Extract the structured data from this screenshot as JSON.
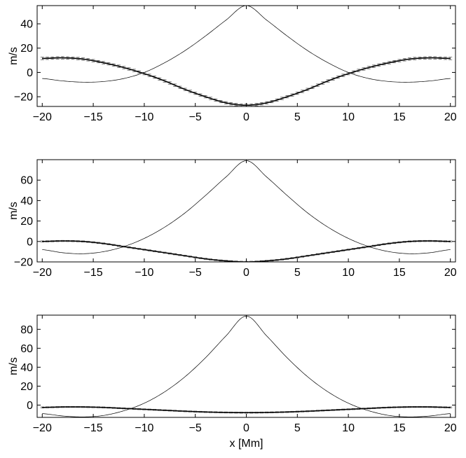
{
  "chart_data": [
    {
      "type": "line",
      "ylabel": "m/s",
      "xlabel": "",
      "xlim": [
        -20.5,
        20.5
      ],
      "ylim": [
        -28,
        55
      ],
      "xticks": [
        -20,
        -15,
        -10,
        -5,
        0,
        5,
        10,
        15,
        20
      ],
      "xtick_labels": [
        "−20",
        "−15",
        "−10",
        "−5",
        "0",
        "5",
        "10",
        "15",
        "20"
      ],
      "yticks": [
        -20,
        0,
        20,
        40
      ],
      "ytick_labels": [
        "−20",
        "0",
        "20",
        "40"
      ],
      "grid": false,
      "series": [
        {
          "style": "thin-line",
          "x": [
            -20,
            -18,
            -16,
            -14,
            -12,
            -10,
            -8,
            -6,
            -4,
            -2,
            0,
            2,
            4,
            6,
            8,
            10,
            12,
            14,
            16,
            18,
            20
          ],
          "y": [
            -5,
            -7,
            -8,
            -7.5,
            -5,
            0,
            8,
            18,
            30,
            43,
            55,
            43,
            30,
            18,
            8,
            0,
            -5,
            -7.5,
            -8,
            -7,
            -5
          ]
        },
        {
          "style": "line-with-errorbars",
          "x": [
            -20,
            -18,
            -16,
            -14,
            -12,
            -10,
            -8,
            -6,
            -4,
            -2,
            0,
            2,
            4,
            6,
            8,
            10,
            12,
            14,
            16,
            18,
            20
          ],
          "y": [
            11.5,
            12,
            11,
            8,
            4,
            -1,
            -7,
            -14,
            -20,
            -25,
            -27,
            -25,
            -20,
            -14,
            -7,
            -1,
            4,
            8,
            11,
            12,
            11.5
          ]
        }
      ]
    },
    {
      "type": "line",
      "ylabel": "m/s",
      "xlabel": "",
      "xlim": [
        -20.5,
        20.5
      ],
      "ylim": [
        -20,
        80
      ],
      "xticks": [
        -20,
        -15,
        -10,
        -5,
        0,
        5,
        10,
        15,
        20
      ],
      "xtick_labels": [
        "−20",
        "−15",
        "−10",
        "−5",
        "0",
        "5",
        "10",
        "15",
        "20"
      ],
      "yticks": [
        -20,
        0,
        20,
        40,
        60
      ],
      "ytick_labels": [
        "−20",
        "0",
        "20",
        "40",
        "60"
      ],
      "grid": false,
      "series": [
        {
          "style": "thin-line",
          "x": [
            -20,
            -18,
            -16,
            -14,
            -12,
            -10,
            -8,
            -6,
            -4,
            -2,
            0,
            2,
            4,
            6,
            8,
            10,
            12,
            14,
            16,
            18,
            20
          ],
          "y": [
            -8,
            -11,
            -12,
            -10,
            -5,
            3,
            14,
            28,
            45,
            63,
            79,
            63,
            45,
            28,
            14,
            3,
            -5,
            -10,
            -12,
            -11,
            -8
          ]
        },
        {
          "style": "line-with-errorbars",
          "x": [
            -20,
            -18,
            -16,
            -14,
            -12,
            -10,
            -8,
            -6,
            -4,
            -2,
            0,
            2,
            4,
            6,
            8,
            10,
            12,
            14,
            16,
            18,
            20
          ],
          "y": [
            0,
            0.5,
            0,
            -2,
            -5,
            -8,
            -11,
            -14,
            -17,
            -19,
            -20,
            -19,
            -17,
            -14,
            -11,
            -8,
            -5,
            -2,
            0,
            0.5,
            0
          ]
        }
      ]
    },
    {
      "type": "line",
      "ylabel": "m/s",
      "xlabel": "x [Mm]",
      "xlim": [
        -20.5,
        20.5
      ],
      "ylim": [
        -13,
        95
      ],
      "xticks": [
        -20,
        -15,
        -10,
        -5,
        0,
        5,
        10,
        15,
        20
      ],
      "xtick_labels": [
        "−20",
        "−15",
        "−10",
        "−5",
        "0",
        "5",
        "10",
        "15",
        "20"
      ],
      "yticks": [
        0,
        20,
        40,
        60,
        80
      ],
      "ytick_labels": [
        "0",
        "20",
        "40",
        "60",
        "80"
      ],
      "grid": false,
      "series": [
        {
          "style": "thin-line",
          "x": [
            -20,
            -18,
            -16,
            -14,
            -12,
            -10,
            -8,
            -6,
            -4,
            -2,
            0,
            2,
            4,
            6,
            8,
            10,
            12,
            14,
            16,
            18,
            20
          ],
          "y": [
            -9,
            -11.5,
            -12.5,
            -11,
            -6,
            2,
            14,
            30,
            50,
            73,
            94,
            73,
            50,
            30,
            14,
            2,
            -6,
            -11,
            -12.5,
            -11.5,
            -9
          ]
        },
        {
          "style": "line-with-errorbars",
          "x": [
            -20,
            -18,
            -16,
            -14,
            -12,
            -10,
            -8,
            -6,
            -4,
            -2,
            0,
            2,
            4,
            6,
            8,
            10,
            12,
            14,
            16,
            18,
            20
          ],
          "y": [
            -2.5,
            -2,
            -2,
            -2.5,
            -3.5,
            -4.5,
            -5.5,
            -6.5,
            -7.3,
            -7.8,
            -8,
            -7.8,
            -7.3,
            -6.5,
            -5.5,
            -4.5,
            -3.5,
            -2.5,
            -2,
            -2,
            -2.5
          ]
        }
      ]
    }
  ]
}
